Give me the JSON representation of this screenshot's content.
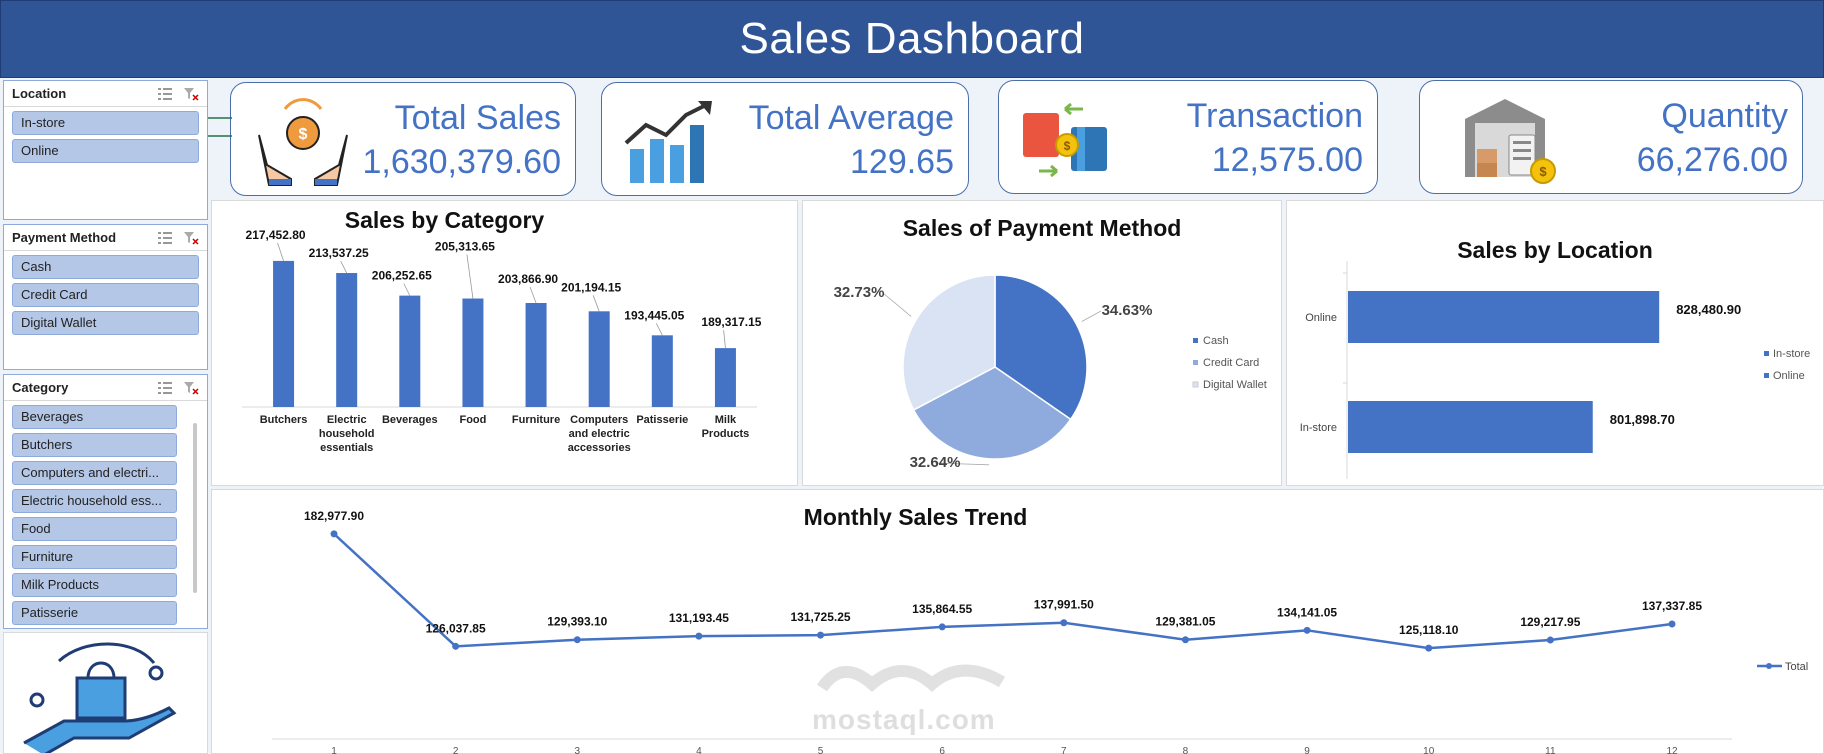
{
  "header": {
    "title": "Sales Dashboard"
  },
  "slicers": {
    "location": {
      "title": "Location",
      "items": [
        "In-store",
        "Online"
      ]
    },
    "payment": {
      "title": "Payment Method",
      "items": [
        "Cash",
        "Credit Card",
        "Digital Wallet"
      ]
    },
    "category": {
      "title": "Category",
      "items": [
        "Beverages",
        "Butchers",
        "Computers and electri...",
        "Electric household ess...",
        "Food",
        "Furniture",
        "Milk Products",
        "Patisserie"
      ]
    }
  },
  "kpis": [
    {
      "label": "Total  Sales",
      "value": "1,630,379.60",
      "icon": "money-bag-hands-icon"
    },
    {
      "label": "Total Average",
      "value": "129.65",
      "icon": "growth-bars-icon"
    },
    {
      "label": "Transaction",
      "value": "12,575.00",
      "icon": "card-exchange-icon"
    },
    {
      "label": "Quantity",
      "value": "66,276.00",
      "icon": "warehouse-icon"
    }
  ],
  "colors": {
    "header": "#2f5597",
    "accent": "#4472c4",
    "slicer_item": "#b4c7e7"
  },
  "chart_data": [
    {
      "type": "bar",
      "title": "Sales by Category",
      "categories": [
        "Butchers",
        "Electric household essentials",
        "Beverages",
        "Food",
        "Furniture",
        "Computers and electric accessories",
        "Patisserie",
        "Milk Products"
      ],
      "values": [
        217452.8,
        213537.25,
        206252.65,
        205313.65,
        203866.9,
        201194.15,
        193445.05,
        189317.15
      ],
      "labels": [
        "217,452.80",
        "213,537.25",
        "206,252.65",
        "205,313.65",
        "203,866.90",
        "201,194.15",
        "193,445.05",
        "189,317.15"
      ],
      "ylim": [
        180000,
        220000
      ]
    },
    {
      "type": "pie",
      "title": "Sales of Payment Method",
      "categories": [
        "Cash",
        "Credit Card",
        "Digital Wallet"
      ],
      "values": [
        34.63,
        32.64,
        32.73
      ],
      "labels": [
        "34.63%",
        "32.64%",
        "32.73%"
      ],
      "colors": [
        "#4472c4",
        "#8faadc",
        "#dae3f3"
      ],
      "legend": "right"
    },
    {
      "type": "bar",
      "title": "Sales by Location",
      "orientation": "horizontal",
      "categories": [
        "Online",
        "In-store"
      ],
      "values": [
        828480.9,
        801898.7
      ],
      "labels": [
        "828,480.90",
        "801,898.70"
      ],
      "legend_items": [
        "In-store",
        "Online"
      ],
      "legend": "right"
    },
    {
      "type": "line",
      "title": "Monthly Sales Trend",
      "x": [
        "1",
        "2",
        "3",
        "4",
        "5",
        "6",
        "7",
        "8",
        "9",
        "10",
        "11",
        "12"
      ],
      "series": [
        {
          "name": "Total",
          "values": [
            182977.9,
            126037.85,
            129393.1,
            131193.45,
            131725.25,
            135864.55,
            137991.5,
            129381.05,
            134141.05,
            125118.1,
            129217.95,
            137337.85
          ]
        }
      ],
      "labels": [
        "182,977.90",
        "126,037.85",
        "129,393.10",
        "131,193.45",
        "131,725.25",
        "135,864.55",
        "137,991.50",
        "129,381.05",
        "134,141.05",
        "125,118.10",
        "129,217.95",
        "137,337.85"
      ],
      "legend": "right"
    }
  ],
  "watermark": {
    "text": "mostaql.com"
  }
}
